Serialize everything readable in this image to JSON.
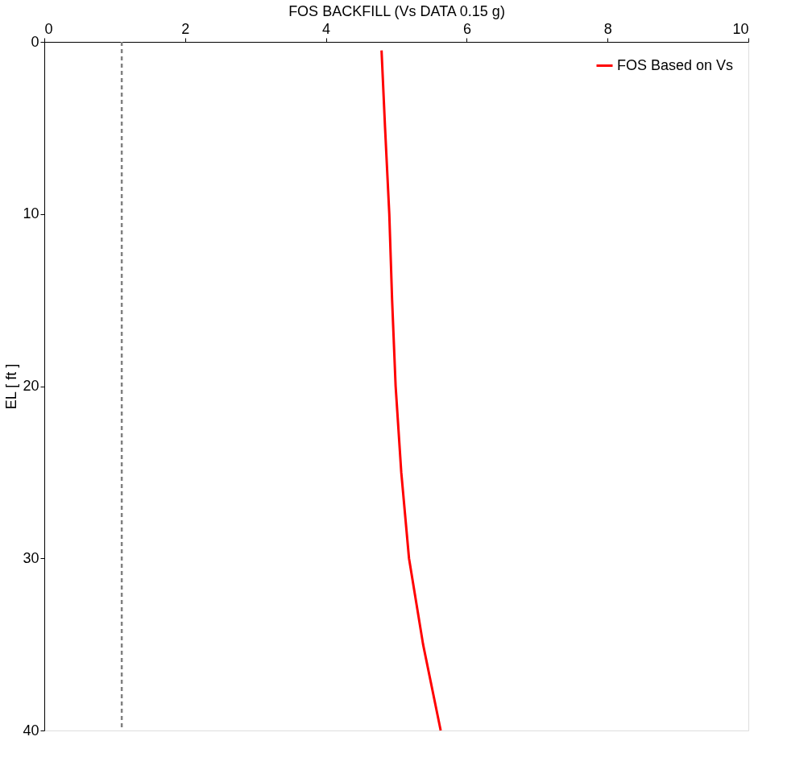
{
  "chart_data": {
    "type": "line",
    "xlabel": "FOS BACKFILL (Vs DATA 0.15 g)",
    "ylabel": "EL [ ft ]",
    "xlim": [
      0,
      10
    ],
    "xticks": [
      0,
      2,
      4,
      6,
      8,
      10
    ],
    "ylim": [
      40,
      0
    ],
    "yticks": [
      0,
      10,
      20,
      30,
      40
    ],
    "series": [
      {
        "name": "FOS Based on Vs",
        "color": "#ff0000",
        "x": [
          4.79,
          4.84,
          4.9,
          4.94,
          4.99,
          5.07,
          5.18,
          5.38,
          5.63
        ],
        "values": [
          0.5,
          5,
          10,
          15,
          20,
          25,
          30,
          35,
          40
        ]
      }
    ],
    "ref_lines": [
      {
        "axis": "x",
        "value": 1.1,
        "color": "#808080",
        "line_style": "dashed"
      }
    ],
    "legend": "top right",
    "grid": false,
    "marker": "none",
    "line_style": "solid"
  }
}
